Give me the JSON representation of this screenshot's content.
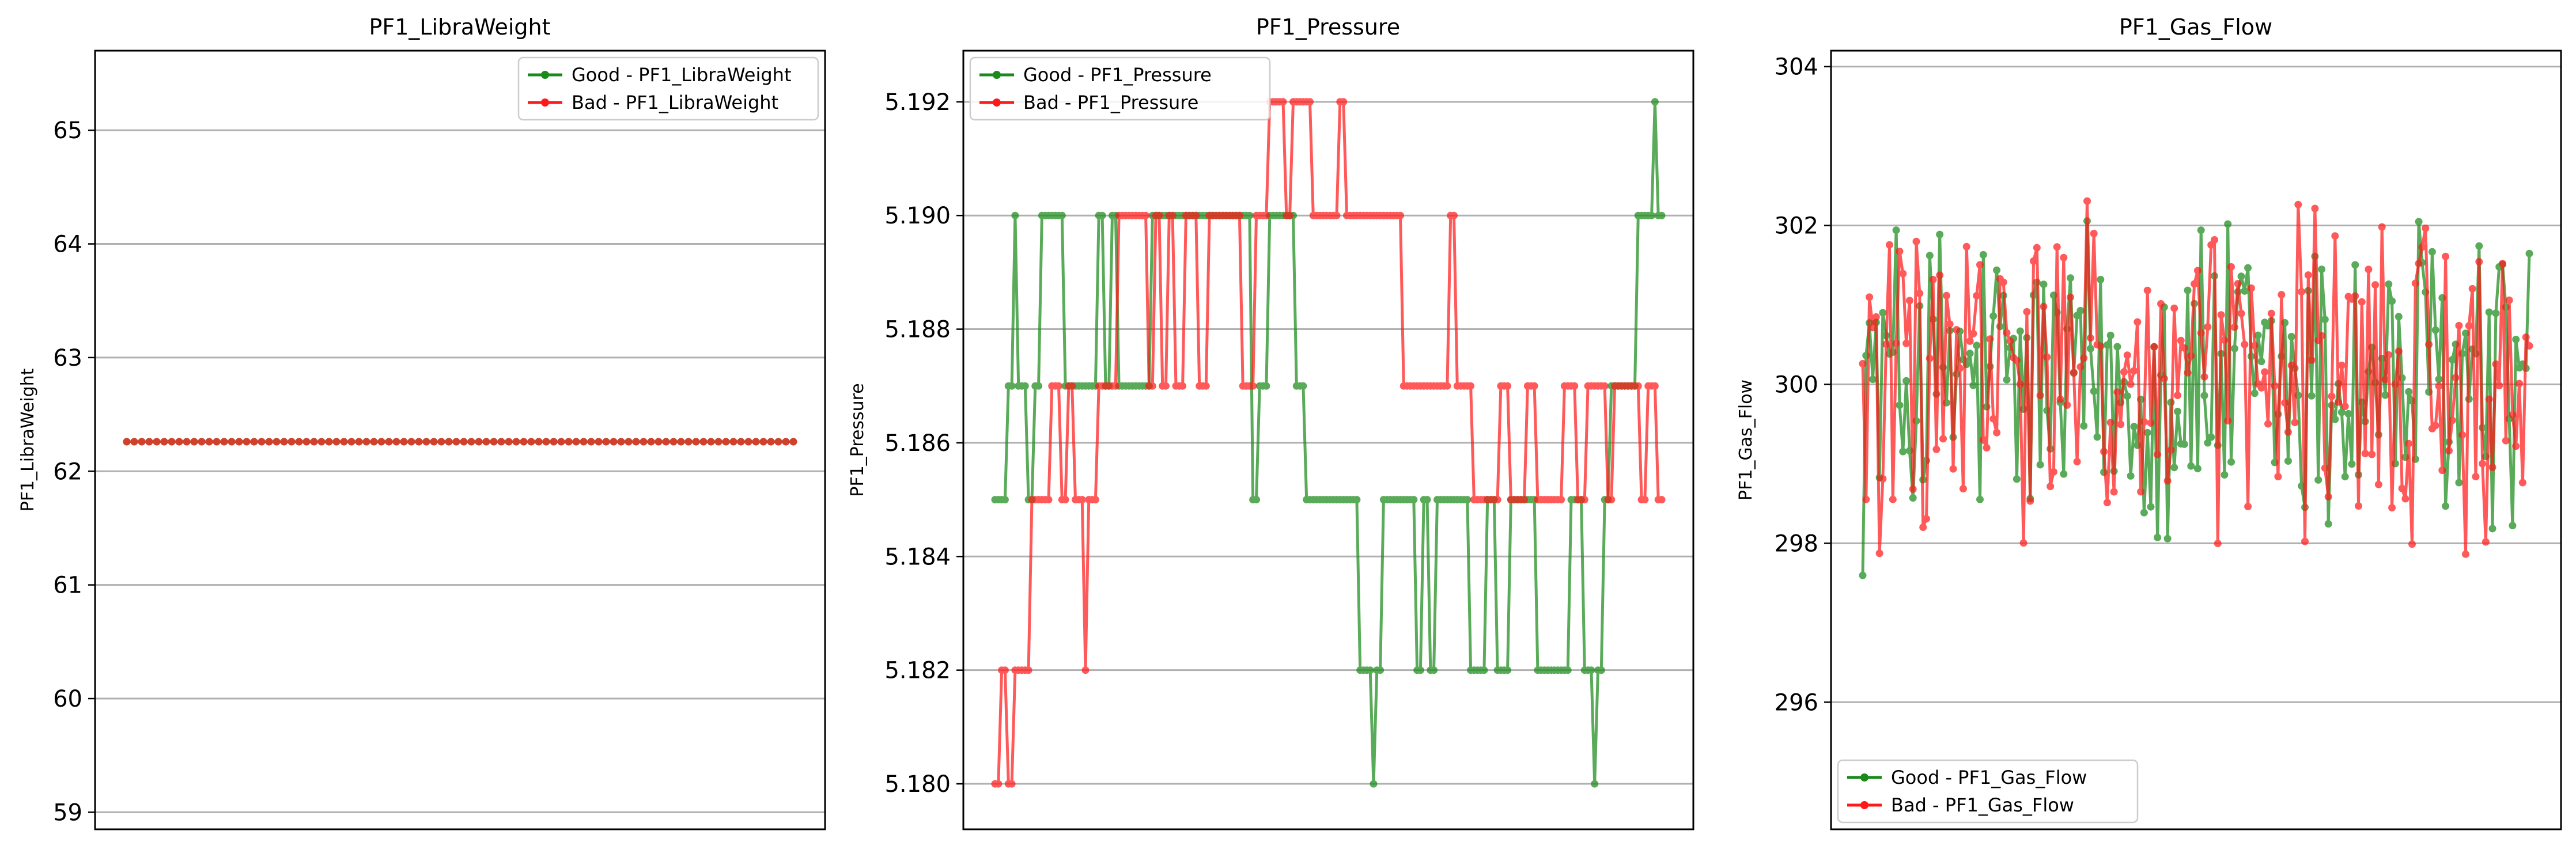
{
  "figure": {
    "background": "#ffffff"
  },
  "colors": {
    "good": "#1a8a1a",
    "bad": "#ff1a1a",
    "grid": "#b0b0b0",
    "axis": "#000000"
  },
  "chart_data": [
    {
      "type": "line",
      "title": "PF1_LibraWeight",
      "ylabel": "PF1_LibraWeight",
      "xlabel": "",
      "ylim": [
        58.85,
        65.7
      ],
      "yticks": [
        59,
        60,
        61,
        62,
        63,
        64,
        65
      ],
      "ytick_labels": [
        "59",
        "60",
        "61",
        "62",
        "63",
        "64",
        "65"
      ],
      "grid": "y",
      "legend_position": "upper right",
      "n_points": 90,
      "series": [
        {
          "name": "Good - PF1_LibraWeight",
          "color": "#1a8a1a",
          "constant": 62.26,
          "segments": []
        },
        {
          "name": "Bad - PF1_LibraWeight",
          "color": "#ff1a1a",
          "constant": 62.26,
          "segments": []
        }
      ]
    },
    {
      "type": "line",
      "title": "PF1_Pressure",
      "ylabel": "PF1_Pressure",
      "xlabel": "",
      "ylim": [
        5.1792,
        5.1929
      ],
      "yticks": [
        5.18,
        5.182,
        5.184,
        5.186,
        5.188,
        5.19,
        5.192
      ],
      "ytick_labels": [
        "5.180",
        "5.182",
        "5.184",
        "5.186",
        "5.188",
        "5.190",
        "5.192"
      ],
      "grid": "y",
      "legend_position": "upper left",
      "n_points": 200,
      "series": [
        {
          "name": "Good - PF1_Pressure",
          "color": "#1a8a1a",
          "segments": [
            [
              5.185,
              3
            ],
            [
              5.187,
              2
            ],
            [
              5.19,
              1
            ],
            [
              5.187,
              3
            ],
            [
              5.185,
              2
            ],
            [
              5.187,
              2
            ],
            [
              5.19,
              7
            ],
            [
              5.187,
              10
            ],
            [
              5.19,
              2
            ],
            [
              5.187,
              2
            ],
            [
              5.19,
              2
            ],
            [
              5.187,
              10
            ],
            [
              5.19,
              30
            ],
            [
              5.185,
              2
            ],
            [
              5.187,
              3
            ],
            [
              5.19,
              8
            ],
            [
              5.187,
              3
            ],
            [
              5.185,
              15
            ],
            [
              5.182,
              4
            ],
            [
              5.18,
              1
            ],
            [
              5.182,
              2
            ],
            [
              5.185,
              10
            ],
            [
              5.182,
              2
            ],
            [
              5.185,
              2
            ],
            [
              5.182,
              2
            ],
            [
              5.185,
              10
            ],
            [
              5.182,
              5
            ],
            [
              5.185,
              3
            ],
            [
              5.182,
              4
            ],
            [
              5.185,
              8
            ],
            [
              5.182,
              10
            ],
            [
              5.185,
              4
            ],
            [
              5.182,
              3
            ],
            [
              5.18,
              1
            ],
            [
              5.182,
              2
            ],
            [
              5.185,
              2
            ],
            [
              5.187,
              8
            ],
            [
              5.19,
              5
            ],
            [
              5.192,
              1
            ],
            [
              5.19,
              2
            ]
          ]
        },
        {
          "name": "Bad - PF1_Pressure",
          "color": "#ff1a1a",
          "segments": [
            [
              5.18,
              1
            ],
            [
              5.182,
              2
            ],
            [
              5.18,
              2
            ],
            [
              5.182,
              5
            ],
            [
              5.185,
              6
            ],
            [
              5.187,
              3
            ],
            [
              5.185,
              2
            ],
            [
              5.187,
              2
            ],
            [
              5.185,
              3
            ],
            [
              5.182,
              1
            ],
            [
              5.185,
              3
            ],
            [
              5.187,
              6
            ],
            [
              5.19,
              8
            ],
            [
              5.187,
              2
            ],
            [
              5.19,
              2
            ],
            [
              5.187,
              2
            ],
            [
              5.19,
              2
            ],
            [
              5.187,
              3
            ],
            [
              5.19,
              4
            ],
            [
              5.187,
              3
            ],
            [
              5.19,
              10
            ],
            [
              5.187,
              4
            ],
            [
              5.19,
              3
            ],
            [
              5.192,
              5
            ],
            [
              5.19,
              2
            ],
            [
              5.192,
              6
            ],
            [
              5.19,
              8
            ],
            [
              5.192,
              2
            ],
            [
              5.19,
              16
            ],
            [
              5.187,
              14
            ],
            [
              5.19,
              2
            ],
            [
              5.187,
              5
            ],
            [
              5.185,
              8
            ],
            [
              5.187,
              3
            ],
            [
              5.185,
              5
            ],
            [
              5.187,
              2
            ],
            [
              5.185,
              8
            ],
            [
              5.187,
              4
            ],
            [
              5.185,
              3
            ],
            [
              5.187,
              6
            ],
            [
              5.185,
              2
            ],
            [
              5.187,
              8
            ],
            [
              5.185,
              2
            ],
            [
              5.187,
              3
            ],
            [
              5.185,
              2
            ]
          ]
        }
      ]
    },
    {
      "type": "line",
      "title": "PF1_Gas_Flow",
      "ylabel": "PF1_Gas_Flow",
      "xlabel": "",
      "ylim": [
        294.4,
        304.2
      ],
      "yticks": [
        296,
        298,
        300,
        302,
        304
      ],
      "ytick_labels": [
        "296",
        "298",
        "300",
        "302",
        "304"
      ],
      "grid": "y",
      "legend_position": "lower left",
      "n_points": 200,
      "series": [
        {
          "name": "Good - PF1_Gas_Flow",
          "color": "#1a8a1a",
          "seed": 12345,
          "range": [
            296.2,
            303.8
          ],
          "base": 300.0,
          "spread": 1.7,
          "segments": []
        },
        {
          "name": "Bad - PF1_Gas_Flow",
          "color": "#ff1a1a",
          "seed": 98765,
          "range": [
            294.7,
            303.8
          ],
          "base": 300.0,
          "spread": 1.7,
          "segments": []
        }
      ]
    }
  ]
}
